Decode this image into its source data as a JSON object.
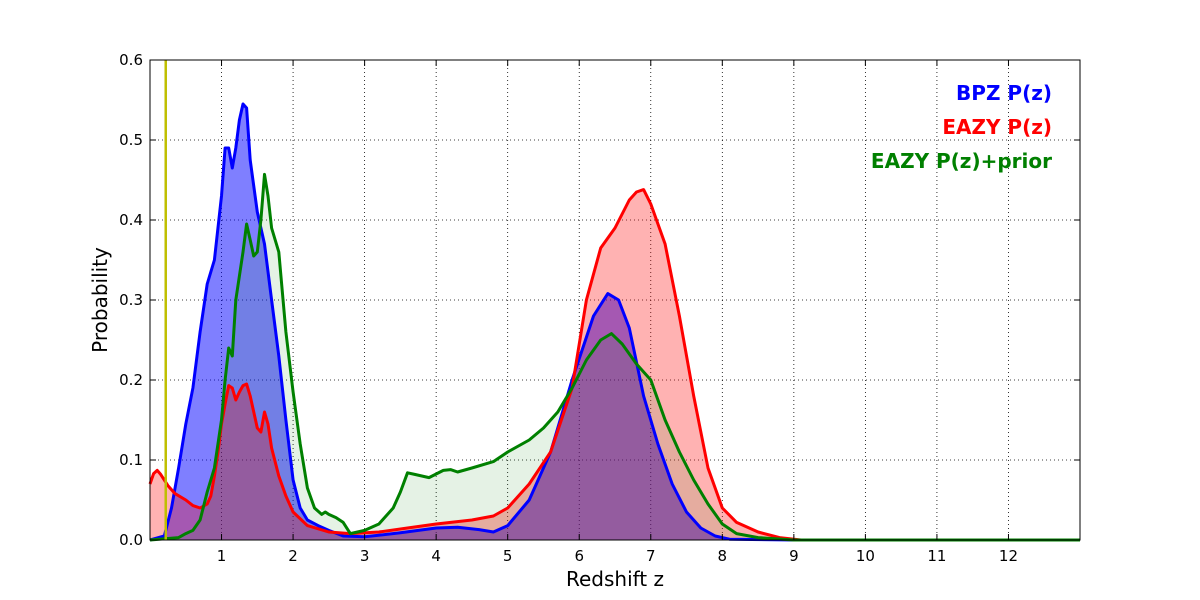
{
  "chart_data": {
    "type": "area",
    "xlabel": "Redshift z",
    "ylabel": "Probability",
    "xlim": [
      0,
      13
    ],
    "ylim": [
      0,
      0.6
    ],
    "x_ticks": [
      1,
      2,
      3,
      4,
      5,
      6,
      7,
      8,
      9,
      10,
      11,
      12
    ],
    "y_ticks": [
      0.0,
      0.1,
      0.2,
      0.3,
      0.4,
      0.5,
      0.6
    ],
    "y_tick_labels": [
      "0.0",
      "0.1",
      "0.2",
      "0.3",
      "0.4",
      "0.5",
      "0.6"
    ],
    "grid": true,
    "legend_position": "top-right",
    "vertical_line": {
      "x": 0.22,
      "color": "#bfbf00"
    },
    "series": [
      {
        "name": "BPZ P(z)",
        "color": "#0000ff",
        "fill": "#0000ff",
        "fill_opacity": 0.5,
        "points": [
          [
            0,
            0.0
          ],
          [
            0.2,
            0.005
          ],
          [
            0.3,
            0.04
          ],
          [
            0.4,
            0.09
          ],
          [
            0.5,
            0.145
          ],
          [
            0.6,
            0.19
          ],
          [
            0.7,
            0.26
          ],
          [
            0.8,
            0.32
          ],
          [
            0.9,
            0.35
          ],
          [
            1.0,
            0.43
          ],
          [
            1.05,
            0.49
          ],
          [
            1.1,
            0.49
          ],
          [
            1.15,
            0.465
          ],
          [
            1.2,
            0.49
          ],
          [
            1.25,
            0.525
          ],
          [
            1.3,
            0.545
          ],
          [
            1.35,
            0.54
          ],
          [
            1.4,
            0.475
          ],
          [
            1.5,
            0.41
          ],
          [
            1.6,
            0.37
          ],
          [
            1.7,
            0.3
          ],
          [
            1.8,
            0.23
          ],
          [
            1.9,
            0.15
          ],
          [
            2.0,
            0.075
          ],
          [
            2.1,
            0.04
          ],
          [
            2.2,
            0.025
          ],
          [
            2.35,
            0.018
          ],
          [
            2.5,
            0.012
          ],
          [
            2.7,
            0.005
          ],
          [
            3.0,
            0.004
          ],
          [
            3.5,
            0.009
          ],
          [
            4.0,
            0.015
          ],
          [
            4.3,
            0.016
          ],
          [
            4.6,
            0.013
          ],
          [
            4.8,
            0.01
          ],
          [
            5.0,
            0.018
          ],
          [
            5.3,
            0.05
          ],
          [
            5.6,
            0.11
          ],
          [
            5.9,
            0.2
          ],
          [
            6.2,
            0.28
          ],
          [
            6.4,
            0.308
          ],
          [
            6.55,
            0.3
          ],
          [
            6.7,
            0.265
          ],
          [
            6.9,
            0.18
          ],
          [
            7.1,
            0.12
          ],
          [
            7.3,
            0.07
          ],
          [
            7.5,
            0.035
          ],
          [
            7.7,
            0.015
          ],
          [
            7.9,
            0.005
          ],
          [
            8.1,
            0.001
          ],
          [
            9.0,
            0.0
          ],
          [
            13.0,
            0.0
          ]
        ]
      },
      {
        "name": "EAZY P(z)",
        "color": "#ff0000",
        "fill": "#ff0000",
        "fill_opacity": 0.3,
        "points": [
          [
            0,
            0.07
          ],
          [
            0.05,
            0.083
          ],
          [
            0.1,
            0.087
          ],
          [
            0.15,
            0.082
          ],
          [
            0.25,
            0.068
          ],
          [
            0.35,
            0.058
          ],
          [
            0.5,
            0.05
          ],
          [
            0.6,
            0.043
          ],
          [
            0.7,
            0.04
          ],
          [
            0.8,
            0.045
          ],
          [
            0.85,
            0.055
          ],
          [
            0.9,
            0.08
          ],
          [
            0.95,
            0.11
          ],
          [
            1.0,
            0.145
          ],
          [
            1.05,
            0.17
          ],
          [
            1.1,
            0.193
          ],
          [
            1.15,
            0.19
          ],
          [
            1.2,
            0.175
          ],
          [
            1.25,
            0.185
          ],
          [
            1.3,
            0.193
          ],
          [
            1.35,
            0.195
          ],
          [
            1.4,
            0.18
          ],
          [
            1.5,
            0.14
          ],
          [
            1.55,
            0.135
          ],
          [
            1.6,
            0.16
          ],
          [
            1.65,
            0.145
          ],
          [
            1.7,
            0.115
          ],
          [
            1.8,
            0.08
          ],
          [
            1.9,
            0.055
          ],
          [
            2.0,
            0.035
          ],
          [
            2.2,
            0.018
          ],
          [
            2.5,
            0.01
          ],
          [
            2.8,
            0.008
          ],
          [
            3.2,
            0.01
          ],
          [
            3.6,
            0.015
          ],
          [
            4.0,
            0.02
          ],
          [
            4.5,
            0.025
          ],
          [
            4.8,
            0.03
          ],
          [
            5.0,
            0.04
          ],
          [
            5.3,
            0.07
          ],
          [
            5.6,
            0.11
          ],
          [
            5.9,
            0.19
          ],
          [
            6.1,
            0.3
          ],
          [
            6.3,
            0.365
          ],
          [
            6.5,
            0.39
          ],
          [
            6.7,
            0.425
          ],
          [
            6.8,
            0.435
          ],
          [
            6.9,
            0.438
          ],
          [
            7.0,
            0.42
          ],
          [
            7.2,
            0.37
          ],
          [
            7.4,
            0.28
          ],
          [
            7.6,
            0.18
          ],
          [
            7.8,
            0.09
          ],
          [
            8.0,
            0.04
          ],
          [
            8.2,
            0.022
          ],
          [
            8.5,
            0.01
          ],
          [
            8.8,
            0.003
          ],
          [
            9.1,
            0.0
          ],
          [
            13.0,
            0.0
          ]
        ]
      },
      {
        "name": "EAZY P(z)+prior",
        "color": "#008000",
        "fill": "#008000",
        "fill_opacity": 0.1,
        "points": [
          [
            0,
            0.0
          ],
          [
            0.4,
            0.003
          ],
          [
            0.5,
            0.008
          ],
          [
            0.6,
            0.012
          ],
          [
            0.7,
            0.025
          ],
          [
            0.8,
            0.06
          ],
          [
            0.9,
            0.09
          ],
          [
            1.0,
            0.15
          ],
          [
            1.05,
            0.2
          ],
          [
            1.1,
            0.24
          ],
          [
            1.15,
            0.23
          ],
          [
            1.2,
            0.3
          ],
          [
            1.3,
            0.36
          ],
          [
            1.35,
            0.395
          ],
          [
            1.4,
            0.375
          ],
          [
            1.45,
            0.355
          ],
          [
            1.5,
            0.36
          ],
          [
            1.55,
            0.4
          ],
          [
            1.6,
            0.457
          ],
          [
            1.65,
            0.43
          ],
          [
            1.7,
            0.39
          ],
          [
            1.8,
            0.36
          ],
          [
            1.9,
            0.26
          ],
          [
            2.0,
            0.185
          ],
          [
            2.1,
            0.12
          ],
          [
            2.2,
            0.065
          ],
          [
            2.3,
            0.04
          ],
          [
            2.4,
            0.032
          ],
          [
            2.45,
            0.035
          ],
          [
            2.5,
            0.032
          ],
          [
            2.6,
            0.028
          ],
          [
            2.7,
            0.022
          ],
          [
            2.8,
            0.008
          ],
          [
            3.0,
            0.012
          ],
          [
            3.2,
            0.02
          ],
          [
            3.4,
            0.04
          ],
          [
            3.5,
            0.06
          ],
          [
            3.6,
            0.084
          ],
          [
            3.7,
            0.082
          ],
          [
            3.9,
            0.078
          ],
          [
            4.1,
            0.087
          ],
          [
            4.2,
            0.088
          ],
          [
            4.3,
            0.085
          ],
          [
            4.5,
            0.09
          ],
          [
            4.8,
            0.098
          ],
          [
            5.0,
            0.11
          ],
          [
            5.3,
            0.125
          ],
          [
            5.5,
            0.14
          ],
          [
            5.7,
            0.16
          ],
          [
            5.9,
            0.19
          ],
          [
            6.1,
            0.225
          ],
          [
            6.3,
            0.25
          ],
          [
            6.45,
            0.258
          ],
          [
            6.6,
            0.245
          ],
          [
            6.8,
            0.22
          ],
          [
            7.0,
            0.2
          ],
          [
            7.2,
            0.15
          ],
          [
            7.4,
            0.11
          ],
          [
            7.6,
            0.075
          ],
          [
            7.8,
            0.045
          ],
          [
            8.0,
            0.02
          ],
          [
            8.2,
            0.008
          ],
          [
            8.5,
            0.003
          ],
          [
            9.0,
            0.0
          ],
          [
            13.0,
            0.0
          ]
        ]
      }
    ]
  }
}
